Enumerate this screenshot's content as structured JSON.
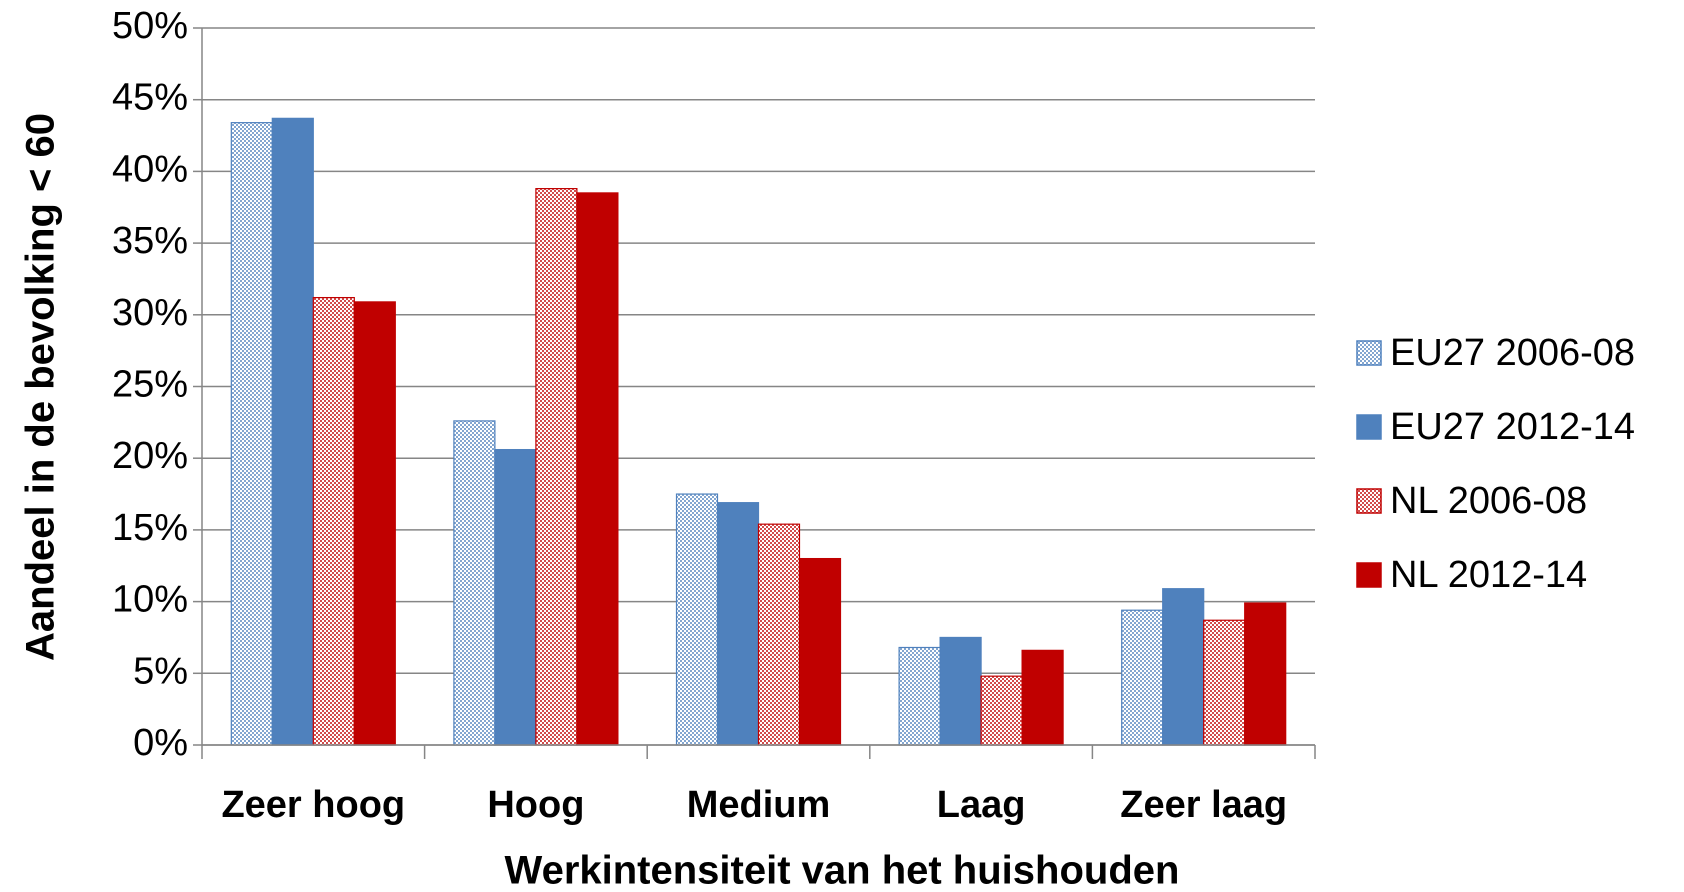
{
  "chart_data": {
    "type": "bar",
    "categories": [
      "Zeer hoog",
      "Hoog",
      "Medium",
      "Laag",
      "Zeer laag"
    ],
    "x_label": "Werkintensiteit van het huishouden",
    "y_label": "Aandeel in de bevolking < 60",
    "series": [
      {
        "name": "EU27 2006-08",
        "color": "#4f81bd",
        "pattern": "dotted",
        "values": [
          43.4,
          22.6,
          17.5,
          6.8,
          9.4
        ]
      },
      {
        "name": "EU27 2012-14",
        "color": "#4f81bd",
        "pattern": "solid",
        "values": [
          43.7,
          20.6,
          16.9,
          7.5,
          10.9
        ]
      },
      {
        "name": "NL 2006-08",
        "color": "#c00000",
        "pattern": "dotted",
        "values": [
          31.2,
          38.8,
          15.4,
          4.8,
          8.7
        ]
      },
      {
        "name": "NL 2012-14",
        "color": "#c00000",
        "pattern": "solid",
        "values": [
          30.9,
          38.5,
          13.0,
          6.6,
          9.9
        ]
      }
    ],
    "ylim": [
      0,
      50
    ],
    "yticks": [
      {
        "value": 0,
        "label": "0%"
      },
      {
        "value": 5,
        "label": "5%"
      },
      {
        "value": 10,
        "label": "10%"
      },
      {
        "value": 15,
        "label": "15%"
      },
      {
        "value": 20,
        "label": "20%"
      },
      {
        "value": 25,
        "label": "25%"
      },
      {
        "value": 30,
        "label": "30%"
      },
      {
        "value": 35,
        "label": "35%"
      },
      {
        "value": 40,
        "label": "40%"
      },
      {
        "value": 45,
        "label": "45%"
      },
      {
        "value": 50,
        "label": "50%"
      }
    ],
    "grid": true,
    "legend": "right"
  }
}
